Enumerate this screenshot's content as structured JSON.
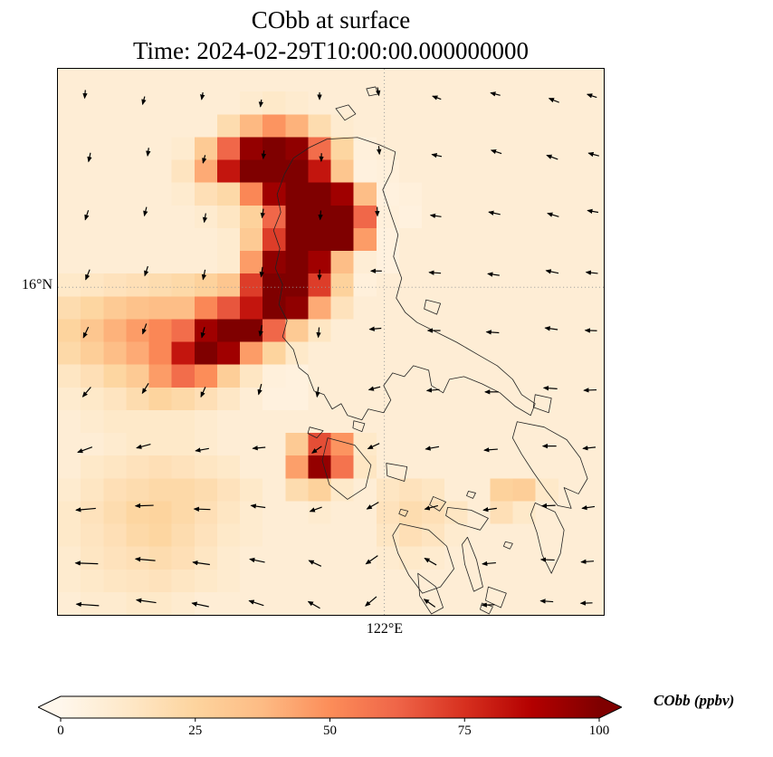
{
  "title": "CObb at surface",
  "subtitle": "Time: 2024-02-29T10:00:00.000000000",
  "axes": {
    "ytick": "16°N",
    "xtick": "122°E"
  },
  "colorbar": {
    "label": "CObb (ppbv)",
    "ticks": [
      "0",
      "25",
      "50",
      "75",
      "100"
    ],
    "colors": {
      "stops": [
        "#fff7ec",
        "#fee8c8",
        "#fdd49e",
        "#fdbb84",
        "#fc8d59",
        "#ef6548",
        "#d7301f",
        "#b30000",
        "#7f0000"
      ]
    }
  },
  "chart_data": {
    "type": "heatmap",
    "title": "CObb at surface",
    "time": "2024-02-29T10:00:00.000000000",
    "variable": "CObb",
    "units": "ppbv",
    "colormap": "OrRd",
    "clim": [
      0,
      100
    ],
    "extend": "both",
    "gridlines": {
      "lat_label": "16°N",
      "lon_label": "122°E",
      "lat_frac": 0.4,
      "lon_frac": 0.598
    },
    "grid_values": [
      [
        8,
        8,
        8,
        8,
        8,
        8,
        8,
        8,
        8,
        8,
        8,
        8,
        8,
        8,
        8,
        8,
        8,
        8,
        8,
        8,
        8,
        8,
        8,
        8
      ],
      [
        8,
        8,
        8,
        8,
        8,
        8,
        8,
        8,
        10,
        12,
        10,
        8,
        8,
        8,
        8,
        8,
        8,
        8,
        8,
        8,
        8,
        8,
        8,
        8
      ],
      [
        8,
        8,
        8,
        8,
        8,
        8,
        8,
        20,
        38,
        48,
        40,
        20,
        10,
        8,
        8,
        8,
        8,
        8,
        8,
        8,
        8,
        8,
        8,
        8
      ],
      [
        8,
        8,
        8,
        8,
        8,
        10,
        30,
        62,
        95,
        108,
        96,
        60,
        24,
        6,
        8,
        8,
        8,
        8,
        8,
        8,
        8,
        8,
        8,
        8
      ],
      [
        8,
        8,
        8,
        8,
        8,
        15,
        42,
        82,
        110,
        120,
        112,
        82,
        32,
        5,
        6,
        8,
        8,
        8,
        8,
        8,
        8,
        8,
        8,
        8
      ],
      [
        8,
        8,
        8,
        8,
        8,
        10,
        18,
        22,
        52,
        92,
        116,
        120,
        92,
        36,
        5,
        6,
        8,
        8,
        8,
        8,
        8,
        8,
        8,
        8
      ],
      [
        8,
        8,
        8,
        8,
        8,
        8,
        10,
        14,
        26,
        62,
        105,
        120,
        112,
        62,
        6,
        5,
        8,
        8,
        8,
        8,
        8,
        8,
        8,
        8
      ],
      [
        8,
        8,
        8,
        8,
        8,
        8,
        8,
        10,
        30,
        72,
        112,
        120,
        102,
        46,
        5,
        8,
        8,
        8,
        8,
        8,
        8,
        8,
        8,
        8
      ],
      [
        8,
        8,
        8,
        8,
        8,
        8,
        8,
        10,
        46,
        96,
        116,
        92,
        36,
        8,
        5,
        8,
        8,
        8,
        8,
        8,
        8,
        8,
        8,
        8
      ],
      [
        12,
        14,
        16,
        18,
        20,
        22,
        26,
        32,
        72,
        106,
        112,
        72,
        26,
        6,
        8,
        8,
        8,
        8,
        8,
        8,
        8,
        8,
        8,
        8
      ],
      [
        20,
        24,
        30,
        34,
        36,
        36,
        52,
        66,
        82,
        110,
        96,
        42,
        16,
        8,
        8,
        8,
        8,
        8,
        8,
        8,
        8,
        8,
        8,
        8
      ],
      [
        25,
        32,
        40,
        46,
        52,
        60,
        92,
        110,
        100,
        62,
        30,
        14,
        8,
        8,
        8,
        8,
        8,
        8,
        8,
        8,
        8,
        8,
        8,
        8
      ],
      [
        22,
        28,
        36,
        42,
        52,
        82,
        106,
        92,
        46,
        25,
        12,
        8,
        8,
        8,
        8,
        8,
        8,
        8,
        8,
        8,
        8,
        8,
        8,
        8
      ],
      [
        14,
        18,
        24,
        30,
        46,
        60,
        50,
        28,
        14,
        6,
        5,
        8,
        8,
        8,
        8,
        8,
        8,
        8,
        8,
        8,
        8,
        8,
        8,
        8
      ],
      [
        10,
        12,
        15,
        20,
        25,
        22,
        18,
        13,
        8,
        5,
        5,
        8,
        8,
        8,
        8,
        8,
        8,
        8,
        8,
        8,
        8,
        8,
        8,
        8
      ],
      [
        8,
        10,
        12,
        12,
        12,
        12,
        10,
        8,
        8,
        8,
        8,
        8,
        8,
        8,
        8,
        8,
        8,
        8,
        8,
        8,
        8,
        8,
        8,
        8
      ],
      [
        8,
        8,
        10,
        12,
        12,
        12,
        10,
        8,
        8,
        8,
        30,
        68,
        48,
        12,
        8,
        8,
        8,
        8,
        8,
        8,
        8,
        8,
        8,
        8
      ],
      [
        8,
        12,
        14,
        16,
        18,
        16,
        14,
        12,
        8,
        8,
        45,
        95,
        58,
        14,
        8,
        8,
        8,
        8,
        8,
        8,
        8,
        8,
        8,
        8
      ],
      [
        10,
        14,
        18,
        20,
        22,
        22,
        20,
        16,
        12,
        8,
        20,
        26,
        12,
        8,
        14,
        16,
        14,
        8,
        8,
        26,
        28,
        12,
        8,
        8
      ],
      [
        12,
        16,
        20,
        24,
        25,
        22,
        18,
        14,
        10,
        8,
        8,
        10,
        8,
        8,
        16,
        20,
        18,
        14,
        8,
        18,
        12,
        8,
        8,
        8
      ],
      [
        12,
        15,
        18,
        22,
        24,
        20,
        16,
        12,
        10,
        8,
        8,
        8,
        8,
        8,
        14,
        18,
        15,
        10,
        8,
        8,
        8,
        8,
        8,
        8
      ],
      [
        10,
        14,
        16,
        18,
        20,
        18,
        14,
        10,
        8,
        8,
        8,
        8,
        8,
        8,
        10,
        12,
        10,
        8,
        8,
        8,
        8,
        8,
        8,
        8
      ],
      [
        10,
        12,
        14,
        15,
        16,
        14,
        12,
        10,
        8,
        8,
        8,
        8,
        8,
        8,
        8,
        8,
        8,
        8,
        8,
        8,
        8,
        8,
        8,
        8
      ],
      [
        8,
        10,
        10,
        12,
        12,
        10,
        8,
        8,
        8,
        8,
        8,
        8,
        8,
        8,
        8,
        8,
        8,
        8,
        8,
        8,
        8,
        8,
        8,
        8
      ]
    ],
    "quiver": [
      [
        30,
        28,
        265,
        9
      ],
      [
        95,
        35,
        255,
        9
      ],
      [
        160,
        30,
        260,
        8
      ],
      [
        225,
        38,
        262,
        8
      ],
      [
        290,
        30,
        270,
        8
      ],
      [
        355,
        25,
        280,
        9
      ],
      [
        420,
        32,
        160,
        10
      ],
      [
        485,
        28,
        165,
        11
      ],
      [
        550,
        35,
        158,
        12
      ],
      [
        592,
        30,
        162,
        11
      ],
      [
        35,
        98,
        258,
        10
      ],
      [
        100,
        92,
        262,
        9
      ],
      [
        162,
        100,
        255,
        9
      ],
      [
        228,
        95,
        265,
        9
      ],
      [
        292,
        98,
        268,
        9
      ],
      [
        356,
        90,
        275,
        9
      ],
      [
        420,
        96,
        168,
        11
      ],
      [
        486,
        92,
        162,
        12
      ],
      [
        548,
        98,
        160,
        13
      ],
      [
        594,
        95,
        165,
        12
      ],
      [
        32,
        162,
        252,
        11
      ],
      [
        97,
        158,
        256,
        10
      ],
      [
        163,
        165,
        260,
        10
      ],
      [
        227,
        160,
        262,
        10
      ],
      [
        291,
        162,
        266,
        10
      ],
      [
        354,
        158,
        272,
        10
      ],
      [
        419,
        163,
        172,
        12
      ],
      [
        484,
        160,
        168,
        13
      ],
      [
        549,
        162,
        163,
        13
      ],
      [
        593,
        158,
        170,
        12
      ],
      [
        33,
        228,
        248,
        12
      ],
      [
        98,
        224,
        252,
        11
      ],
      [
        162,
        228,
        258,
        11
      ],
      [
        226,
        225,
        262,
        11
      ],
      [
        290,
        228,
        268,
        11
      ],
      [
        353,
        224,
        180,
        12
      ],
      [
        418,
        226,
        176,
        13
      ],
      [
        483,
        228,
        172,
        13
      ],
      [
        548,
        225,
        168,
        14
      ],
      [
        592,
        226,
        174,
        13
      ],
      [
        31,
        292,
        245,
        13
      ],
      [
        96,
        288,
        250,
        12
      ],
      [
        161,
        292,
        255,
        12
      ],
      [
        225,
        290,
        260,
        12
      ],
      [
        289,
        292,
        265,
        11
      ],
      [
        352,
        288,
        185,
        13
      ],
      [
        417,
        290,
        180,
        14
      ],
      [
        482,
        292,
        176,
        14
      ],
      [
        547,
        288,
        172,
        14
      ],
      [
        591,
        290,
        178,
        13
      ],
      [
        32,
        358,
        230,
        14
      ],
      [
        97,
        354,
        238,
        13
      ],
      [
        161,
        358,
        246,
        12
      ],
      [
        224,
        355,
        255,
        12
      ],
      [
        288,
        358,
        262,
        11
      ],
      [
        351,
        354,
        195,
        13
      ],
      [
        416,
        356,
        185,
        14
      ],
      [
        481,
        358,
        180,
        15
      ],
      [
        546,
        354,
        176,
        15
      ],
      [
        590,
        356,
        182,
        14
      ],
      [
        30,
        422,
        200,
        17
      ],
      [
        95,
        418,
        195,
        16
      ],
      [
        160,
        422,
        190,
        15
      ],
      [
        223,
        420,
        185,
        14
      ],
      [
        287,
        422,
        215,
        13
      ],
      [
        350,
        418,
        205,
        14
      ],
      [
        415,
        420,
        190,
        15
      ],
      [
        480,
        422,
        184,
        15
      ],
      [
        545,
        418,
        180,
        15
      ],
      [
        589,
        420,
        186,
        14
      ],
      [
        31,
        488,
        185,
        22
      ],
      [
        96,
        484,
        182,
        20
      ],
      [
        160,
        488,
        178,
        18
      ],
      [
        222,
        485,
        172,
        16
      ],
      [
        286,
        488,
        200,
        14
      ],
      [
        349,
        484,
        210,
        15
      ],
      [
        414,
        486,
        195,
        15
      ],
      [
        479,
        488,
        188,
        15
      ],
      [
        544,
        484,
        182,
        15
      ],
      [
        588,
        486,
        188,
        14
      ],
      [
        32,
        548,
        178,
        25
      ],
      [
        97,
        544,
        175,
        22
      ],
      [
        159,
        548,
        172,
        19
      ],
      [
        221,
        545,
        168,
        17
      ],
      [
        285,
        548,
        155,
        15
      ],
      [
        348,
        544,
        215,
        16
      ],
      [
        413,
        546,
        150,
        15
      ],
      [
        478,
        548,
        185,
        15
      ],
      [
        543,
        544,
        178,
        15
      ],
      [
        587,
        546,
        184,
        14
      ],
      [
        33,
        594,
        176,
        25
      ],
      [
        98,
        590,
        172,
        22
      ],
      [
        158,
        594,
        168,
        19
      ],
      [
        220,
        592,
        162,
        17
      ],
      [
        284,
        594,
        150,
        15
      ],
      [
        347,
        590,
        220,
        16
      ],
      [
        412,
        592,
        145,
        15
      ],
      [
        477,
        594,
        182,
        14
      ],
      [
        542,
        590,
        176,
        14
      ],
      [
        586,
        592,
        182,
        13
      ]
    ],
    "coastlines": [
      "M 298 78 L 332 76 L 356 84 L 374 92 L 370 114 L 360 134 L 368 158 L 377 184 L 372 208 L 381 232 L 375 254 L 385 270 L 398 281 L 418 291 L 442 303 L 466 317 L 487 329 L 504 344 L 514 361 L 529 371 L 524 384 L 507 374 L 490 359 L 470 349 L 450 341 L 434 344 L 427 359 L 414 351 L 411 334 L 394 329 L 384 341 L 371 337 L 361 351 L 369 367 L 361 381 L 344 377 L 337 389 L 321 384 L 314 371 L 304 377 L 295 361 L 284 357 L 277 339 L 267 331 L 261 311 L 249 297 L 254 279 L 245 261 L 249 239 L 241 221 L 246 199 L 239 179 L 247 159 L 243 139 L 251 117 L 261 99 L 279 87 Z",
      "M 308 44 L 322 40 L 330 50 L 318 57 Z",
      "M 342 22 L 352 20 L 355 28 L 345 30 Z",
      "M 408 256 L 424 260 L 420 272 L 406 266 Z",
      "M 328 390 L 340 393 L 337 402 L 327 398 Z",
      "M 279 397 L 294 401 L 287 409 L 277 404 Z",
      "M 299 409 L 329 417 L 347 439 L 341 464 L 321 477 L 301 461 L 293 434 Z",
      "M 364 437 L 387 441 L 384 457 L 365 451 Z",
      "M 529 361 L 547 365 L 544 381 L 527 375 Z",
      "M 416 474 L 430 480 L 423 490 L 412 483 Z",
      "M 432 486 L 458 489 L 477 498 L 468 511 L 444 504 L 430 495 Z",
      "M 509 391 L 539 397 L 564 411 L 579 431 L 587 454 L 577 471 L 561 464 L 569 487 L 554 484 L 541 467 L 527 447 L 514 427 L 504 409 Z",
      "M 529 481 L 551 491 L 561 511 L 557 537 L 547 559 L 537 539 L 531 514 L 524 494 Z",
      "M 379 504 L 411 511 L 431 529 L 439 554 L 424 574 L 404 581 L 389 561 L 377 537 L 371 517 Z",
      "M 399 559 L 419 574 L 427 597 L 414 604 L 401 584 Z",
      "M 454 519 L 464 544 L 471 574 L 461 579 L 451 549 L 448 527 Z",
      "M 477 574 L 497 581 L 491 597 L 474 589 Z",
      "M 380 488 L 388 490 L 385 496 L 378 493 Z",
      "M 455 468 L 463 470 L 460 476 L 453 473 Z",
      "M 496 524 L 504 526 L 501 532 L 494 529 Z",
      "M 470 592 L 482 596 L 478 604 L 468 599 Z"
    ]
  }
}
